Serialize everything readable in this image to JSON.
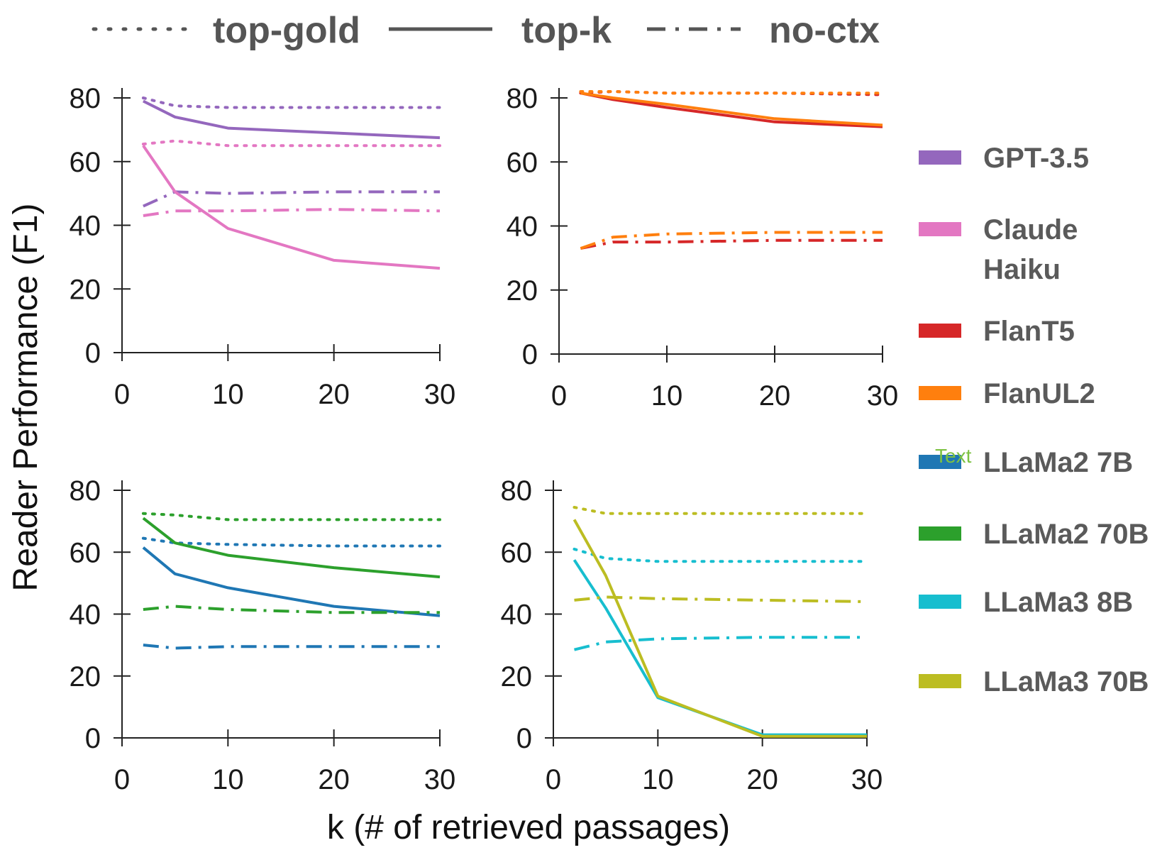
{
  "chart_data": {
    "type": "line",
    "ylabel": "Reader Performance (F1)",
    "xlabel": "k (# of retrieved passages)",
    "annotation": "Text",
    "style_legend": [
      {
        "label": "top-gold",
        "style": "dotted"
      },
      {
        "label": "top-k",
        "style": "solid"
      },
      {
        "label": "no-ctx",
        "style": "dashdot"
      }
    ],
    "model_legend": [
      {
        "label": "GPT-3.5",
        "color": "#9467bd"
      },
      {
        "label": "Claude",
        "label2": "Haiku",
        "color": "#e377c2"
      },
      {
        "label": "FlanT5",
        "color": "#d62728"
      },
      {
        "label": "FlanUL2",
        "color": "#ff7f0e"
      },
      {
        "label": "LLaMa2 7B",
        "color": "#1f77b4"
      },
      {
        "label": "LLaMa2 70B",
        "color": "#2ca02c"
      },
      {
        "label": "LLaMa3 8B",
        "color": "#17becf"
      },
      {
        "label": "LLaMa3 70B",
        "color": "#bcbd22"
      }
    ],
    "x": [
      2,
      5,
      10,
      20,
      30
    ],
    "xticks": [
      "0",
      "10",
      "20",
      "30"
    ],
    "yticks": [
      "0",
      "20",
      "40",
      "60",
      "80"
    ],
    "xlim": [
      0,
      30
    ],
    "ylim": [
      0,
      80
    ],
    "panels": [
      {
        "series": [
          {
            "model": "GPT-3.5",
            "color": "#9467bd",
            "top_gold": [
              80,
              77.5,
              77,
              77,
              77
            ],
            "top_k": [
              79,
              74,
              70.5,
              69,
              67.5
            ],
            "no_ctx": [
              46,
              50.5,
              50,
              50.5,
              50.5
            ]
          },
          {
            "model": "Claude Haiku",
            "color": "#e377c2",
            "top_gold": [
              65.5,
              66.5,
              65,
              65,
              65
            ],
            "top_k": [
              65,
              50.5,
              39,
              29,
              26.5
            ],
            "no_ctx": [
              43,
              44.5,
              44.5,
              45,
              44.5
            ]
          }
        ]
      },
      {
        "series": [
          {
            "model": "FlanT5",
            "color": "#d62728",
            "top_gold": [
              81.5,
              82,
              81.5,
              81.5,
              81
            ],
            "top_k": [
              81.5,
              79.5,
              77,
              72.5,
              71
            ],
            "no_ctx": [
              33,
              35,
              35,
              35.5,
              35.5
            ]
          },
          {
            "model": "FlanUL2",
            "color": "#ff7f0e",
            "top_gold": [
              82,
              82,
              81.5,
              81.5,
              81.5
            ],
            "top_k": [
              81.5,
              80,
              78,
              73.5,
              71.5
            ],
            "no_ctx": [
              33,
              36.5,
              37.5,
              38,
              38
            ]
          }
        ]
      },
      {
        "series": [
          {
            "model": "LLaMa2 7B",
            "color": "#1f77b4",
            "top_gold": [
              64.5,
              63,
              62.5,
              62,
              62
            ],
            "top_k": [
              61.5,
              53,
              48.5,
              42.5,
              39.5
            ],
            "no_ctx": [
              30,
              29,
              29.5,
              29.5,
              29.5
            ]
          },
          {
            "model": "LLaMa2 70B",
            "color": "#2ca02c",
            "top_gold": [
              72.5,
              72,
              70.5,
              70.5,
              70.5
            ],
            "top_k": [
              71,
              63,
              59,
              55,
              52
            ],
            "no_ctx": [
              41.5,
              42.5,
              41.5,
              40.5,
              40.5
            ]
          }
        ]
      },
      {
        "series": [
          {
            "model": "LLaMa3 8B",
            "color": "#17becf",
            "top_gold": [
              61,
              58,
              57,
              57,
              57
            ],
            "top_k": [
              57.5,
              42,
              13,
              1,
              1
            ],
            "no_ctx": [
              28.5,
              31,
              32,
              32.5,
              32.5
            ]
          },
          {
            "model": "LLaMa3 70B",
            "color": "#bcbd22",
            "top_gold": [
              74.5,
              72.5,
              72.5,
              72.5,
              72.5
            ],
            "top_k": [
              70.5,
              52.5,
              13.5,
              0.5,
              0.5
            ],
            "no_ctx": [
              44.5,
              45.5,
              45,
              44.5,
              44
            ]
          }
        ]
      }
    ]
  }
}
